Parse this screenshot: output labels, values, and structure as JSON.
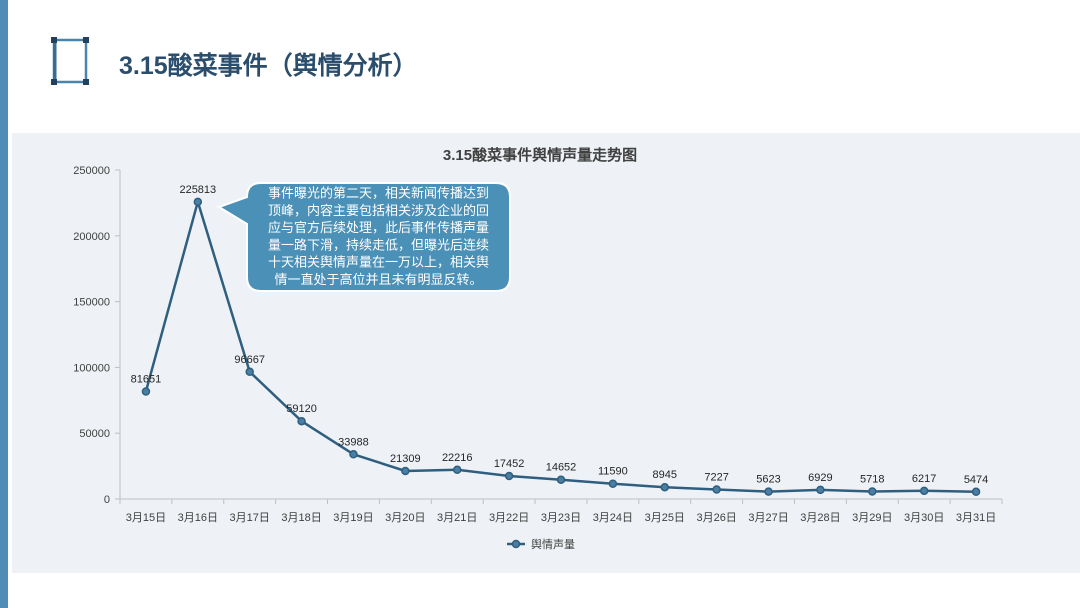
{
  "slide": {
    "title": "3.15酸菜事件（舆情分析）",
    "icon": "bracket-frame-icon",
    "colors": {
      "accent_bar": "#4d8db6",
      "title": "#2c4e6d",
      "panel_background": "#eef2f6"
    }
  },
  "chart_data": {
    "type": "line",
    "title": "3.15酸菜事件舆情声量走势图",
    "xlabel": "",
    "ylabel": "",
    "categories": [
      "3月15日",
      "3月16日",
      "3月17日",
      "3月18日",
      "3月19日",
      "3月20日",
      "3月21日",
      "3月22日",
      "3月23日",
      "3月24日",
      "3月25日",
      "3月26日",
      "3月27日",
      "3月28日",
      "3月29日",
      "3月30日",
      "3月31日"
    ],
    "series": [
      {
        "name": "舆情声量",
        "color": "#2f5e7f",
        "values": [
          81651,
          225813,
          96667,
          59120,
          33988,
          21309,
          22216,
          17452,
          14652,
          11590,
          8945,
          7227,
          5623,
          6929,
          5718,
          6217,
          5474
        ]
      }
    ],
    "ylim": [
      0,
      250000
    ],
    "yticks": [
      0,
      50000,
      100000,
      150000,
      200000,
      250000
    ],
    "grid": false,
    "legend": "bottom",
    "annotation": {
      "fill": "#4b90b7",
      "lines": [
        "事件曝光的第二天，相关新闻传播达到",
        "顶峰，内容主要包括相关涉及企业的回",
        "应与官方后续处理，此后事件传播声量",
        "量一路下滑，持续走低，但曝光后连续",
        "十天相关舆情声量在一万以上，相关舆",
        "情一直处于高位并且未有明显反转。"
      ]
    }
  }
}
